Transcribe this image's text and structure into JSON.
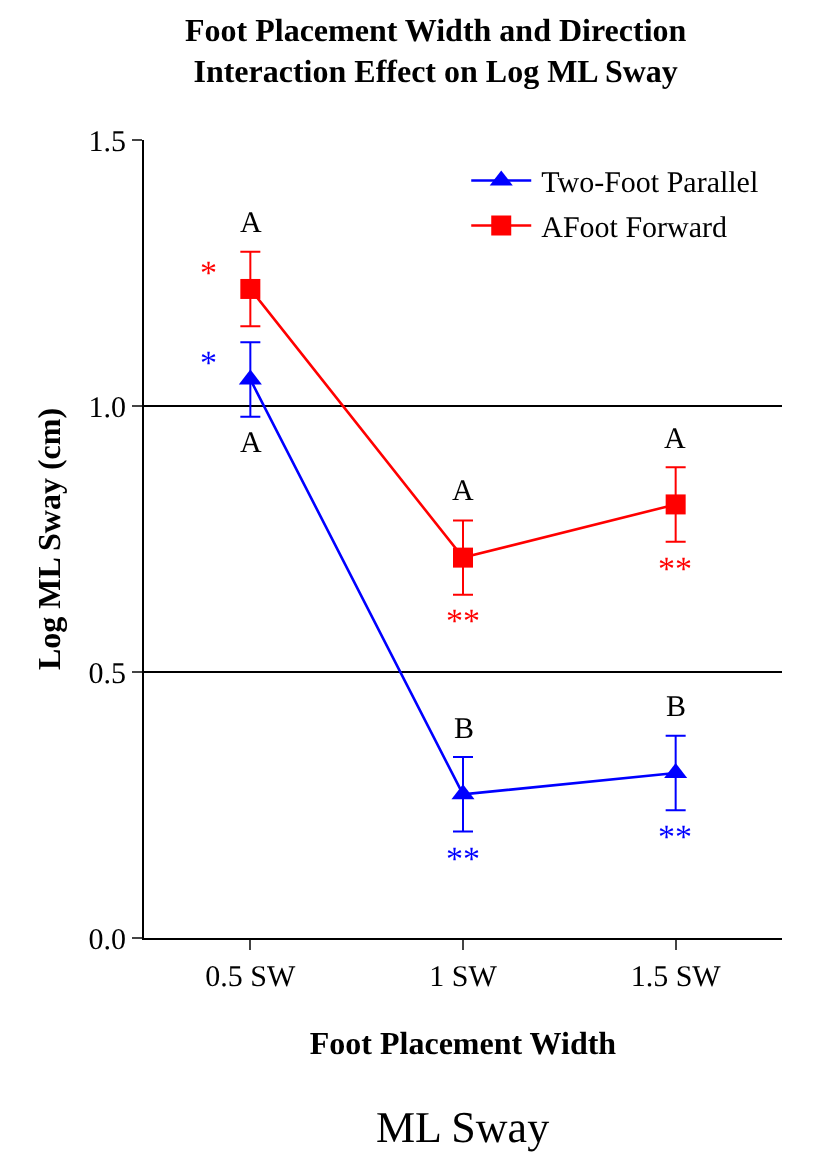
{
  "chart_data": {
    "type": "line",
    "title": "Foot Placement Width and Direction\nInteraction Effect on Log ML Sway",
    "xlabel": "Foot Placement Width",
    "ylabel": "Log ML Sway (cm)",
    "categories": [
      "0.5 SW",
      "1 SW",
      "1.5 SW"
    ],
    "series": [
      {
        "name": "Two-Foot Parallel",
        "color": "#0000ff",
        "marker": "triangle",
        "values": [
          1.05,
          0.27,
          0.31
        ],
        "errors": [
          0.07,
          0.07,
          0.07
        ],
        "value_labels": [
          "*",
          "**",
          "**"
        ]
      },
      {
        "name": "AFoot Forward",
        "color": "#ff0000",
        "marker": "square",
        "values": [
          1.22,
          0.715,
          0.815
        ],
        "errors": [
          0.07,
          0.07,
          0.07
        ],
        "value_labels": [
          "*",
          "**",
          "**"
        ]
      }
    ],
    "ylim": [
      0,
      1.5
    ],
    "yticks": [
      {
        "value": 0,
        "label": "0.0"
      },
      {
        "value": 0.5,
        "label": "0.5"
      },
      {
        "value": 1,
        "label": "1.0"
      },
      {
        "value": 1.5,
        "label": "1.5"
      }
    ],
    "grid": "y",
    "legend": "top right",
    "line_style": "solid",
    "annotations": [
      {
        "text": "A",
        "x": "0.5 SW",
        "y": 1.22
      },
      {
        "text": "A",
        "x": "0.5 SW",
        "y": 1.05
      },
      {
        "text": "A",
        "x": "1 SW",
        "y": 0.715
      },
      {
        "text": "B",
        "x": "1 SW",
        "y": 0.27
      },
      {
        "text": "A",
        "x": "1.5 SW",
        "y": 0.815
      },
      {
        "text": "B",
        "x": "1.5 SW",
        "y": 0.31
      },
      "ML Sway"
    ]
  }
}
